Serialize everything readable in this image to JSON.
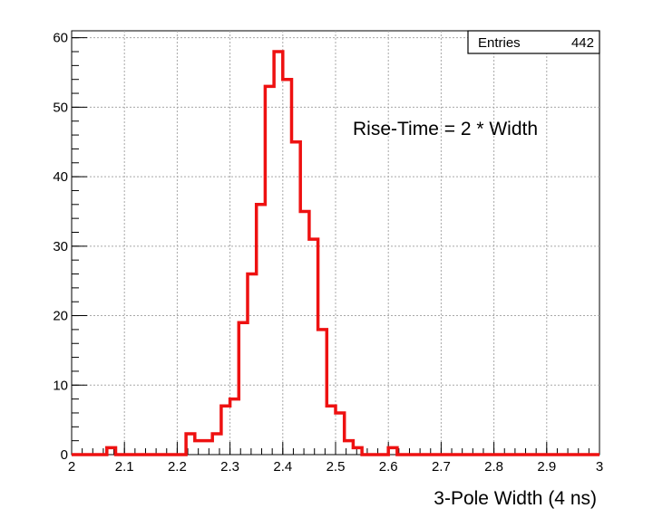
{
  "chart_data": {
    "type": "histogram",
    "xlabel": "3-Pole Width   (4 ns)",
    "ylabel": "",
    "xlim": [
      2,
      3
    ],
    "ylim": [
      0,
      61
    ],
    "grid": true,
    "bin_width": 0.0166667,
    "x_ticks": [
      "2",
      "2.1",
      "2.2",
      "2.3",
      "2.4",
      "2.5",
      "2.6",
      "2.7",
      "2.8",
      "2.9",
      "3"
    ],
    "y_ticks": [
      "0",
      "10",
      "20",
      "30",
      "40",
      "50",
      "60"
    ],
    "values": [
      0,
      0,
      0,
      0,
      1,
      0,
      0,
      0,
      0,
      0,
      0,
      0,
      0,
      3,
      2,
      2,
      3,
      7,
      8,
      19,
      26,
      36,
      53,
      58,
      54,
      45,
      35,
      31,
      18,
      7,
      6,
      2,
      1,
      0,
      0,
      0,
      1,
      0,
      0,
      0,
      0,
      0,
      0,
      0,
      0,
      0,
      0,
      0,
      0,
      0,
      0,
      0,
      0,
      0,
      0,
      0,
      0,
      0,
      0,
      0
    ],
    "line_color": "#ee1111",
    "stats_box": {
      "label": "Entries",
      "value": "442"
    },
    "annotation": "Rise-Time = 2 * Width"
  }
}
